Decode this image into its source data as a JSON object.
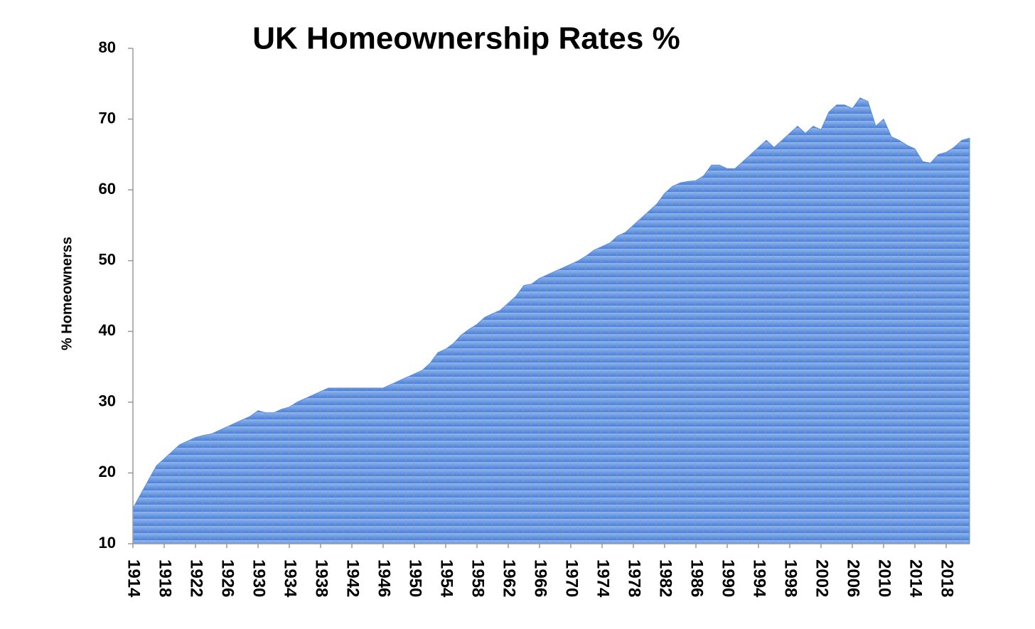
{
  "chart_data": {
    "type": "area",
    "title": "UK Homeownership Rates %",
    "y_label": "% Homeownerss",
    "color": "#5b8fde",
    "x": [
      1914,
      1915,
      1916,
      1917,
      1918,
      1919,
      1920,
      1921,
      1922,
      1923,
      1924,
      1925,
      1926,
      1927,
      1928,
      1929,
      1930,
      1931,
      1932,
      1933,
      1934,
      1935,
      1936,
      1937,
      1938,
      1939,
      1940,
      1941,
      1942,
      1943,
      1944,
      1945,
      1946,
      1947,
      1948,
      1949,
      1950,
      1951,
      1952,
      1953,
      1954,
      1955,
      1956,
      1957,
      1958,
      1959,
      1960,
      1961,
      1962,
      1963,
      1964,
      1965,
      1966,
      1967,
      1968,
      1969,
      1970,
      1971,
      1972,
      1973,
      1974,
      1975,
      1976,
      1977,
      1978,
      1979,
      1980,
      1981,
      1982,
      1983,
      1984,
      1985,
      1986,
      1987,
      1988,
      1989,
      1990,
      1991,
      1992,
      1993,
      1994,
      1995,
      1996,
      1997,
      1998,
      1999,
      2000,
      2001,
      2002,
      2003,
      2004,
      2005,
      2006,
      2007,
      2008,
      2009,
      2010,
      2011,
      2012,
      2013,
      2014,
      2015,
      2016,
      2017,
      2018,
      2019,
      2020,
      2021
    ],
    "values": [
      15,
      17,
      19,
      21,
      22,
      23,
      24,
      24.5,
      25,
      25.3,
      25.5,
      26,
      26.5,
      27,
      27.5,
      28,
      28.8,
      28.5,
      28.5,
      29,
      29.3,
      30,
      30.5,
      31,
      31.5,
      32,
      32,
      32,
      32,
      32,
      32,
      32,
      32,
      32.5,
      33,
      33.5,
      34,
      34.5,
      35.5,
      37,
      37.5,
      38.3,
      39.5,
      40.3,
      41,
      42,
      42.5,
      43,
      44,
      45,
      46.5,
      46.7,
      47.5,
      48,
      48.5,
      49,
      49.5,
      50,
      50.7,
      51.5,
      52,
      52.5,
      53.5,
      54,
      55,
      56,
      57,
      58,
      59.5,
      60.5,
      61,
      61.2,
      61.3,
      62,
      63.5,
      63.5,
      63,
      63,
      64,
      65,
      66,
      67,
      66,
      67,
      68,
      69,
      68,
      69,
      68.5,
      71,
      72,
      72,
      71.5,
      73,
      72.5,
      69,
      70,
      67.5,
      67,
      66.3,
      65.8,
      64,
      63.8,
      65,
      65.3,
      66,
      67,
      67.3
    ],
    "xlim": [
      1914,
      2021
    ],
    "xticks": [
      1914,
      1918,
      1922,
      1926,
      1930,
      1934,
      1938,
      1942,
      1946,
      1950,
      1954,
      1958,
      1962,
      1966,
      1970,
      1974,
      1978,
      1982,
      1986,
      1990,
      1994,
      1998,
      2002,
      2006,
      2010,
      2014,
      2018
    ],
    "ylim": [
      10,
      80
    ],
    "yticks": [
      10,
      20,
      30,
      40,
      50,
      60,
      70,
      80
    ],
    "grid": false
  }
}
